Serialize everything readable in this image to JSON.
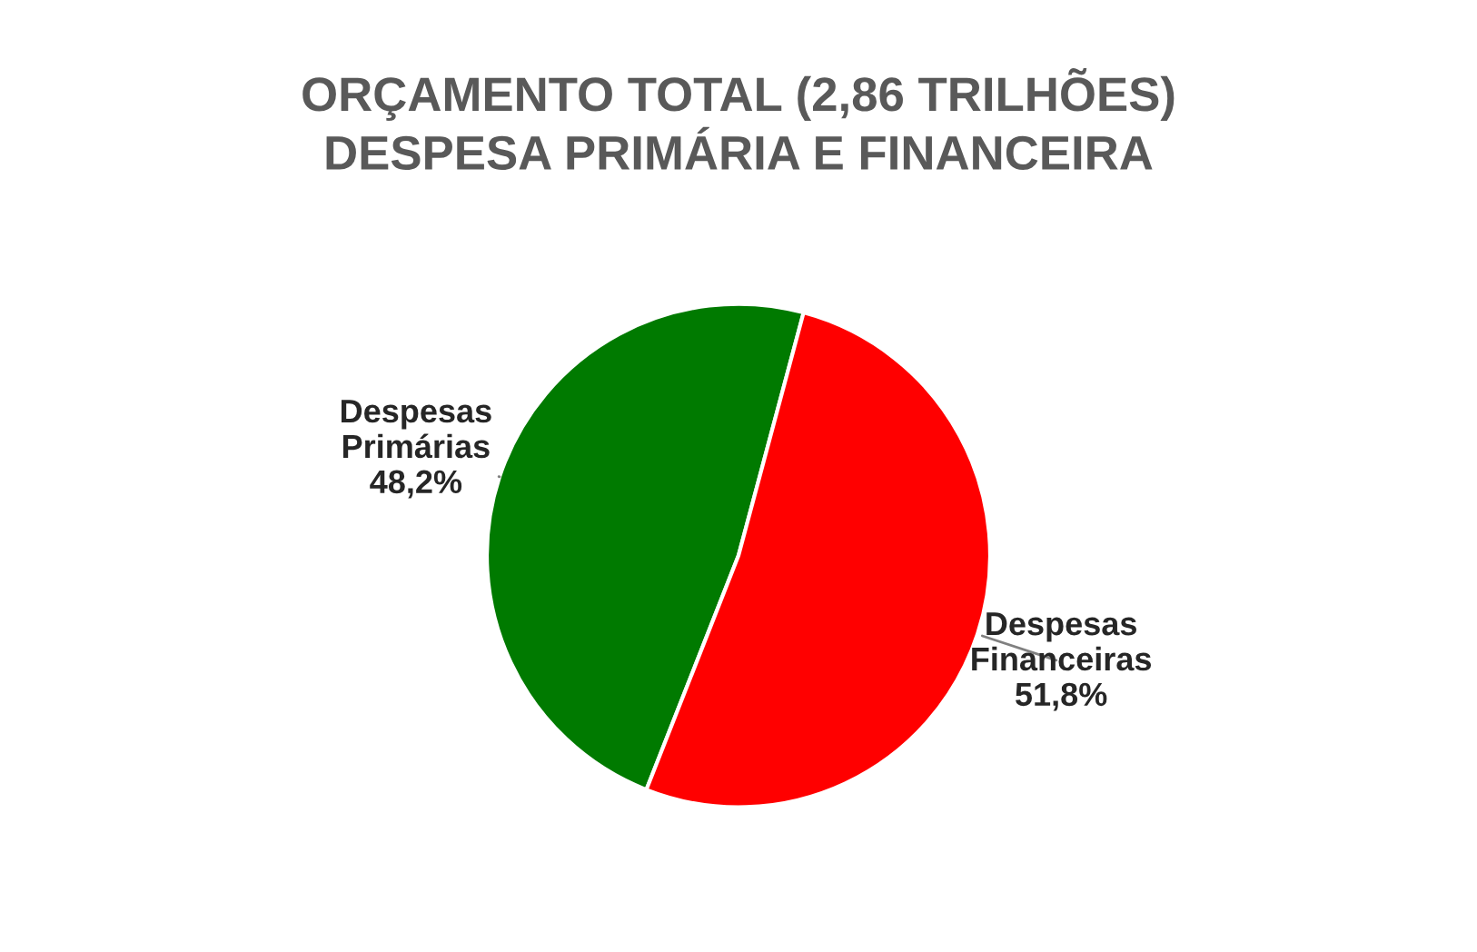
{
  "chart_data": {
    "type": "pie",
    "title": "ORÇAMENTO TOTAL (2,86 TRILHÕES)\nDESPESA PRIMÁRIA E FINANCEIRA",
    "categories": [
      "Despesas\nPrimárias",
      "Despesas\nFinanceiras"
    ],
    "values": [
      48.2,
      51.8
    ],
    "colors": [
      "#007a00",
      "#ff0000"
    ],
    "value_labels": [
      "48,2%",
      "51,8%"
    ]
  }
}
